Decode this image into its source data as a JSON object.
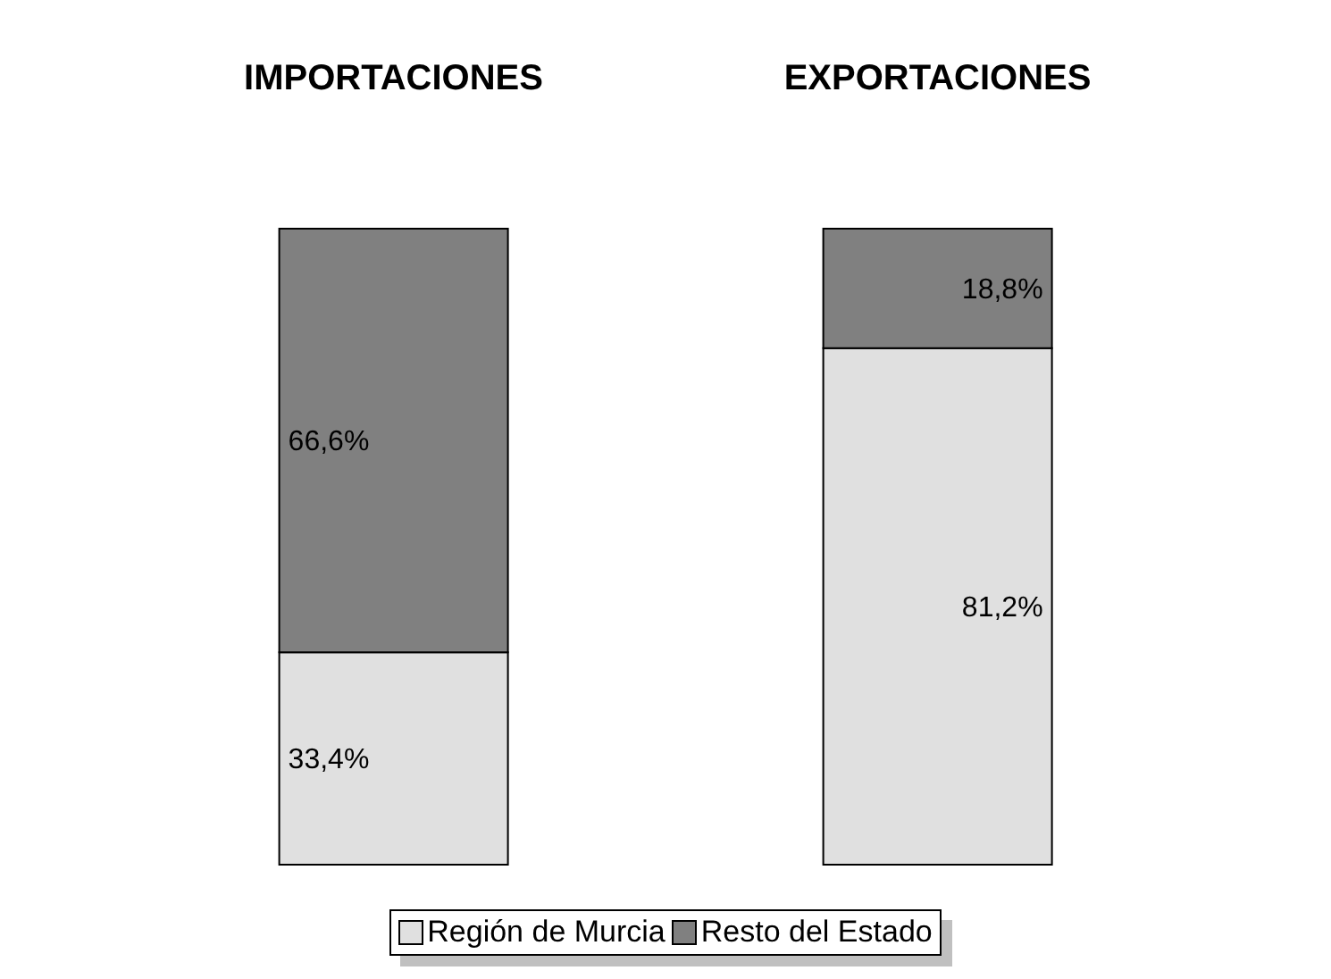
{
  "chart_data": {
    "type": "bar",
    "stacked": true,
    "categories": [
      "IMPORTACIONES",
      "EXPORTACIONES"
    ],
    "series": [
      {
        "name": "Región de Murcia",
        "color": "#e0e0e0",
        "values": [
          33.4,
          81.2
        ],
        "value_labels": [
          "33,4%",
          "81,2%"
        ]
      },
      {
        "name": "Resto del Estado",
        "color": "#808080",
        "values": [
          66.6,
          18.8
        ],
        "value_labels": [
          "66,6%",
          "18,8%"
        ]
      }
    ],
    "legend": "bottom",
    "grid": false
  }
}
